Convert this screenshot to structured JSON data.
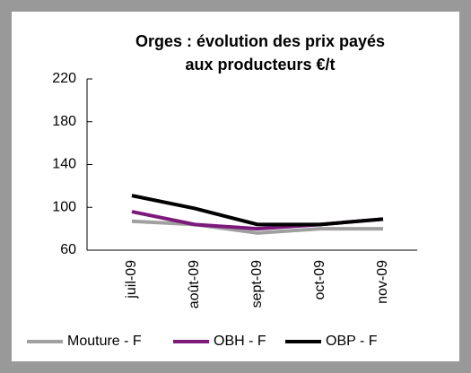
{
  "chart_data": {
    "type": "line",
    "title": "Orges : évolution des prix payés aux producteurs €/t",
    "title_lines": [
      "Orges : évolution des prix payés",
      "aux producteurs €/t"
    ],
    "categories": [
      "juil-09",
      "août-09",
      "sept-09",
      "oct-09",
      "nov-09"
    ],
    "series": [
      {
        "name": "Mouture - F",
        "color": "#a0a0a0",
        "values": [
          87,
          84,
          76,
          80,
          80
        ]
      },
      {
        "name": "OBH - F",
        "color": "#7b1a7b",
        "values": [
          96,
          84,
          80,
          84,
          89
        ]
      },
      {
        "name": "OBP - F",
        "color": "#000000",
        "values": [
          111,
          99,
          84,
          84,
          89
        ]
      }
    ],
    "ylim": [
      60,
      220
    ],
    "yticks": [
      60,
      100,
      140,
      180,
      220
    ],
    "grid": false,
    "legend": "bottom"
  }
}
